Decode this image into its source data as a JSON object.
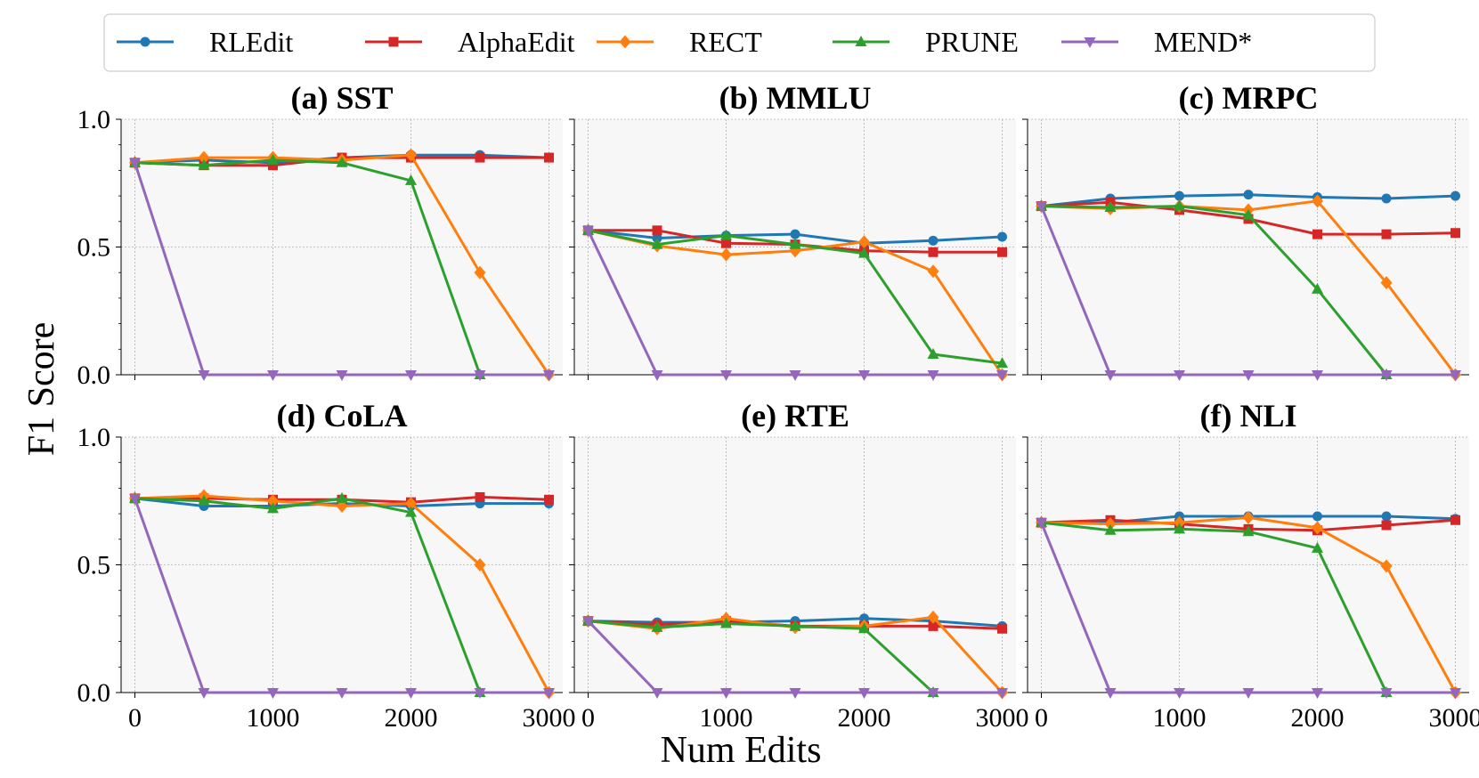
{
  "figure": {
    "ylabel": "F1 Score",
    "xlabel": "Num Edits"
  },
  "legend": {
    "placement": "top-center",
    "entries": [
      {
        "name": "RLEdit",
        "color": "#1f77b4",
        "marker": "circle"
      },
      {
        "name": "AlphaEdit",
        "color": "#d62728",
        "marker": "square"
      },
      {
        "name": "RECT",
        "color": "#ff7f0e",
        "marker": "diamond"
      },
      {
        "name": "PRUNE",
        "color": "#2ca02c",
        "marker": "triangle-up"
      },
      {
        "name": "MEND*",
        "color": "#9467bd",
        "marker": "triangle-down"
      }
    ]
  },
  "chart_data": [
    {
      "type": "line",
      "title": "(a) SST",
      "x": [
        0,
        500,
        1000,
        1500,
        2000,
        2500,
        3000
      ],
      "xlim": [
        -100,
        3100
      ],
      "ylim": [
        0,
        1
      ],
      "xticks": [
        "0",
        "1000",
        "2000",
        "3000"
      ],
      "yticks": [
        "0.0",
        "0.5",
        "1.0"
      ],
      "grid": true,
      "series": [
        {
          "name": "RLEdit",
          "values": [
            0.83,
            0.84,
            0.83,
            0.85,
            0.86,
            0.86,
            0.85
          ]
        },
        {
          "name": "AlphaEdit",
          "values": [
            0.83,
            0.82,
            0.82,
            0.85,
            0.85,
            0.85,
            0.85
          ]
        },
        {
          "name": "RECT",
          "values": [
            0.83,
            0.85,
            0.85,
            0.84,
            0.86,
            0.4,
            0.0
          ]
        },
        {
          "name": "PRUNE",
          "values": [
            0.83,
            0.82,
            0.84,
            0.83,
            0.76,
            0.0,
            null
          ]
        },
        {
          "name": "MEND*",
          "values": [
            0.83,
            0.0,
            0.0,
            0.0,
            0.0,
            0.0,
            0.0
          ]
        }
      ]
    },
    {
      "type": "line",
      "title": "(b) MMLU",
      "x": [
        0,
        500,
        1000,
        1500,
        2000,
        2500,
        3000
      ],
      "xlim": [
        -100,
        3100
      ],
      "ylim": [
        0,
        1
      ],
      "xticks": [
        "0",
        "1000",
        "2000",
        "3000"
      ],
      "yticks": [
        "0.0",
        "0.5",
        "1.0"
      ],
      "grid": true,
      "series": [
        {
          "name": "RLEdit",
          "values": [
            0.565,
            0.535,
            0.545,
            0.55,
            0.515,
            0.525,
            0.54
          ]
        },
        {
          "name": "AlphaEdit",
          "values": [
            0.565,
            0.565,
            0.515,
            0.51,
            0.485,
            0.48,
            0.48
          ]
        },
        {
          "name": "RECT",
          "values": [
            0.565,
            0.505,
            0.47,
            0.485,
            0.52,
            0.405,
            0.0
          ]
        },
        {
          "name": "PRUNE",
          "values": [
            0.565,
            0.51,
            0.545,
            0.51,
            0.475,
            0.08,
            0.045
          ]
        },
        {
          "name": "MEND*",
          "values": [
            0.565,
            0.0,
            0.0,
            0.0,
            0.0,
            0.0,
            0.0
          ]
        }
      ]
    },
    {
      "type": "line",
      "title": "(c) MRPC",
      "x": [
        0,
        500,
        1000,
        1500,
        2000,
        2500,
        3000
      ],
      "xlim": [
        -100,
        3100
      ],
      "ylim": [
        0,
        1
      ],
      "xticks": [
        "0",
        "1000",
        "2000",
        "3000"
      ],
      "yticks": [
        "0.0",
        "0.5",
        "1.0"
      ],
      "grid": true,
      "series": [
        {
          "name": "RLEdit",
          "values": [
            0.66,
            0.69,
            0.7,
            0.705,
            0.695,
            0.69,
            0.7
          ]
        },
        {
          "name": "AlphaEdit",
          "values": [
            0.66,
            0.675,
            0.645,
            0.61,
            0.55,
            0.55,
            0.555
          ]
        },
        {
          "name": "RECT",
          "values": [
            0.66,
            0.65,
            0.66,
            0.645,
            0.68,
            0.36,
            0.0
          ]
        },
        {
          "name": "PRUNE",
          "values": [
            0.66,
            0.655,
            0.66,
            0.625,
            0.335,
            0.0,
            null
          ]
        },
        {
          "name": "MEND*",
          "values": [
            0.66,
            0.0,
            0.0,
            0.0,
            0.0,
            0.0,
            0.0
          ]
        }
      ]
    },
    {
      "type": "line",
      "title": "(d) CoLA",
      "x": [
        0,
        500,
        1000,
        1500,
        2000,
        2500,
        3000
      ],
      "xlim": [
        -100,
        3100
      ],
      "ylim": [
        0,
        1
      ],
      "xticks": [
        "0",
        "1000",
        "2000",
        "3000"
      ],
      "yticks": [
        "0.0",
        "0.5",
        "1.0"
      ],
      "grid": true,
      "series": [
        {
          "name": "RLEdit",
          "values": [
            0.76,
            0.73,
            0.73,
            0.74,
            0.73,
            0.74,
            0.74
          ]
        },
        {
          "name": "AlphaEdit",
          "values": [
            0.76,
            0.76,
            0.755,
            0.755,
            0.745,
            0.765,
            0.755
          ]
        },
        {
          "name": "RECT",
          "values": [
            0.76,
            0.77,
            0.75,
            0.73,
            0.74,
            0.5,
            0.0
          ]
        },
        {
          "name": "PRUNE",
          "values": [
            0.76,
            0.75,
            0.72,
            0.76,
            0.705,
            0.0,
            null
          ]
        },
        {
          "name": "MEND*",
          "values": [
            0.76,
            0.0,
            0.0,
            0.0,
            0.0,
            0.0,
            0.0
          ]
        }
      ]
    },
    {
      "type": "line",
      "title": "(e) RTE",
      "x": [
        0,
        500,
        1000,
        1500,
        2000,
        2500,
        3000
      ],
      "xlim": [
        -100,
        3100
      ],
      "ylim": [
        0,
        1
      ],
      "xticks": [
        "0",
        "1000",
        "2000",
        "3000"
      ],
      "yticks": [
        "0.0",
        "0.5",
        "1.0"
      ],
      "grid": true,
      "series": [
        {
          "name": "RLEdit",
          "values": [
            0.28,
            0.275,
            0.275,
            0.28,
            0.29,
            0.28,
            0.26
          ]
        },
        {
          "name": "AlphaEdit",
          "values": [
            0.28,
            0.265,
            0.28,
            0.26,
            0.26,
            0.26,
            0.25
          ]
        },
        {
          "name": "RECT",
          "values": [
            0.28,
            0.25,
            0.29,
            0.255,
            0.26,
            0.295,
            0.0
          ]
        },
        {
          "name": "PRUNE",
          "values": [
            0.28,
            0.255,
            0.27,
            0.26,
            0.25,
            0.0,
            null
          ]
        },
        {
          "name": "MEND*",
          "values": [
            0.28,
            0.0,
            0.0,
            0.0,
            0.0,
            0.0,
            0.0
          ]
        }
      ]
    },
    {
      "type": "line",
      "title": "(f) NLI",
      "x": [
        0,
        500,
        1000,
        1500,
        2000,
        2500,
        3000
      ],
      "xlim": [
        -100,
        3100
      ],
      "ylim": [
        0,
        1
      ],
      "xticks": [
        "0",
        "1000",
        "2000",
        "3000"
      ],
      "yticks": [
        "0.0",
        "0.5",
        "1.0"
      ],
      "grid": true,
      "series": [
        {
          "name": "RLEdit",
          "values": [
            0.665,
            0.665,
            0.69,
            0.69,
            0.69,
            0.69,
            0.68
          ]
        },
        {
          "name": "AlphaEdit",
          "values": [
            0.665,
            0.675,
            0.66,
            0.64,
            0.635,
            0.655,
            0.675
          ]
        },
        {
          "name": "RECT",
          "values": [
            0.665,
            0.66,
            0.665,
            0.685,
            0.645,
            0.495,
            0.0
          ]
        },
        {
          "name": "PRUNE",
          "values": [
            0.665,
            0.635,
            0.64,
            0.63,
            0.565,
            0.0,
            null
          ]
        },
        {
          "name": "MEND*",
          "values": [
            0.665,
            0.0,
            0.0,
            0.0,
            0.0,
            0.0,
            0.0
          ]
        }
      ]
    }
  ]
}
